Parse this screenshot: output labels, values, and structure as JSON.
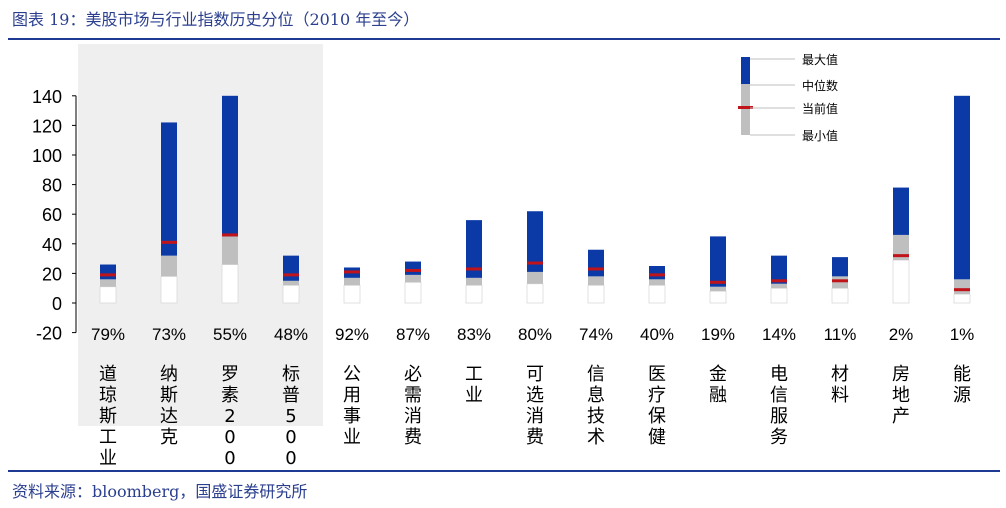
{
  "title": "图表 19：美股市场与行业指数历史分位（2010 年至今）",
  "source": "资料来源：bloomberg，国盛证券研究所",
  "colors": {
    "upper": "#0b3aa6",
    "lower": "#bfbfbf",
    "current": "#c0141a",
    "highlight": "#efefef"
  },
  "chart_data": {
    "type": "bar",
    "title": "美股市场与行业指数历史分位（2010 年至今）",
    "ylim": [
      -20,
      140
    ],
    "yticks": [
      "-20",
      "0",
      "20",
      "40",
      "60",
      "80",
      "100",
      "120",
      "140"
    ],
    "legend": {
      "position": "top-right",
      "labels": {
        "max": "最大值",
        "median": "中位数",
        "current": "当前值",
        "min": "最小值"
      }
    },
    "categories": [
      "道琼斯工业",
      "纳斯达克",
      "罗素2000",
      "标普500",
      "公用事业",
      "必需消费",
      "工业",
      "可选消费",
      "信息技术",
      "医疗保健",
      "金融",
      "电信服务",
      "材料",
      "房地产",
      "能源"
    ],
    "percentiles": [
      "79%",
      "73%",
      "55%",
      "48%",
      "92%",
      "87%",
      "83%",
      "80%",
      "74%",
      "40%",
      "19%",
      "14%",
      "11%",
      "2%",
      "1%"
    ],
    "highlighted": [
      "道琼斯工业",
      "纳斯达克",
      "罗素2000"
    ],
    "series": [
      {
        "name": "最小值",
        "values": [
          11,
          18,
          26,
          12,
          12,
          14,
          12,
          13,
          12,
          12,
          8,
          10,
          10,
          29,
          6
        ]
      },
      {
        "name": "中位数",
        "values": [
          16,
          32,
          45,
          15,
          17,
          19,
          17,
          21,
          18,
          16,
          11,
          13,
          18,
          46,
          16
        ]
      },
      {
        "name": "当前值",
        "values": [
          19,
          41,
          46,
          19,
          21,
          22,
          23,
          27,
          23,
          19,
          14,
          15,
          15,
          32,
          9
        ]
      },
      {
        "name": "最大值",
        "values": [
          26,
          122,
          140,
          32,
          24,
          28,
          56,
          62,
          36,
          25,
          45,
          32,
          31,
          78,
          140
        ]
      }
    ]
  }
}
